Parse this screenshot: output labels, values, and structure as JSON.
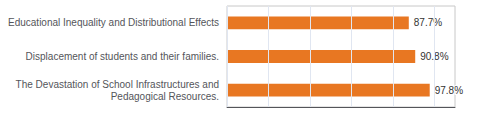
{
  "chart_data": {
    "type": "bar",
    "orientation": "horizontal",
    "categories": [
      "The Devastation of School Infrastructures and\nPedagogical Resources.",
      "Displacement of students and their families.",
      "Educational Inequality and Distributional Effects"
    ],
    "values": [
      97.8,
      90.8,
      87.7
    ],
    "value_labels": [
      "97.8%",
      "90.8%",
      "87.7%"
    ],
    "color": "#E87722",
    "xlim": [
      0,
      110
    ],
    "xticks": [
      0,
      20,
      40,
      60,
      80,
      100
    ],
    "grid": true,
    "data_labels": true,
    "tick_labels": "y"
  }
}
